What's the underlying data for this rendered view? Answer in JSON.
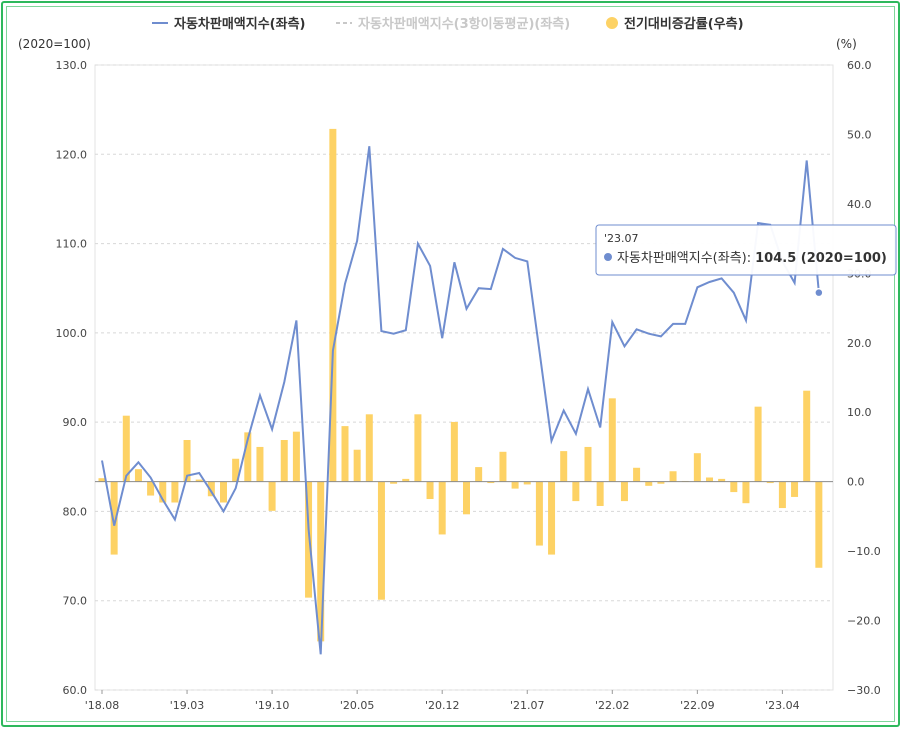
{
  "chart_data": {
    "type": "bar",
    "legend_position": "top",
    "grid": true,
    "left_axis": {
      "unit_label": "(2020=100)",
      "ylim": [
        60,
        130
      ],
      "ticks": [
        "130.0",
        "120.0",
        "110.0",
        "100.0",
        "90.0",
        "80.0",
        "70.0",
        "60.0"
      ]
    },
    "right_axis": {
      "unit_label": "(%)",
      "ylim": [
        -30,
        60
      ],
      "ticks": [
        "60.0",
        "50.0",
        "40.0",
        "30.0",
        "20.0",
        "10.0",
        "0.0",
        "−10.0",
        "−20.0",
        "−30.0"
      ]
    },
    "x_tick_labels": [
      "'18.08",
      "'19.03",
      "'19.10",
      "'20.05",
      "'20.12",
      "'21.07",
      "'22.02",
      "'22.09",
      "'23.04"
    ],
    "series": [
      {
        "name": "자동차판매액지수(좌측)",
        "kind": "line",
        "axis": "left",
        "color": "#6f8dcf",
        "values": [
          85.7,
          78.4,
          84.0,
          85.5,
          83.8,
          81.3,
          79.1,
          84.0,
          84.3,
          82.2,
          80.0,
          82.6,
          88.1,
          93.0,
          89.2,
          94.5,
          101.4,
          78.0,
          64.0,
          98.0,
          105.5,
          110.3,
          120.9,
          100.2,
          99.9,
          100.3,
          110.0,
          107.5,
          99.4,
          107.9,
          102.7,
          105.0,
          104.9,
          109.4,
          108.4,
          108.0,
          98.0,
          87.9,
          91.3,
          88.7,
          93.7,
          89.4,
          101.2,
          98.5,
          100.4,
          99.9,
          99.6,
          101.0,
          101.0,
          105.1,
          105.7,
          106.1,
          104.5,
          101.4,
          112.3,
          112.1,
          108.0,
          105.6,
          119.3,
          104.5
        ]
      },
      {
        "name": "자동차판매액지수(3항이동평균)(좌측)",
        "kind": "line-dashed",
        "axis": "left",
        "color": "#c8c8c8",
        "values": []
      },
      {
        "name": "전기대비증감률(우측)",
        "kind": "bar",
        "axis": "right",
        "color": "#fdd265",
        "values": [
          0.5,
          -10.5,
          9.5,
          1.8,
          -2.0,
          -3.0,
          -3.0,
          6.0,
          0.3,
          -2.1,
          -3.0,
          3.3,
          7.1,
          5.0,
          -4.2,
          6.0,
          7.2,
          -16.7,
          -23.0,
          50.8,
          8.0,
          4.6,
          9.7,
          -17.0,
          -0.3,
          0.4,
          9.7,
          -2.5,
          -7.6,
          8.6,
          -4.7,
          2.1,
          -0.2,
          4.3,
          -1.0,
          -0.4,
          -9.2,
          -10.5,
          4.4,
          -2.8,
          5.0,
          -3.5,
          12.0,
          -2.8,
          2.0,
          -0.6,
          -0.3,
          1.5,
          0.1,
          4.1,
          0.6,
          0.4,
          -1.5,
          -3.1,
          10.8,
          -0.2,
          -3.8,
          -2.2,
          13.1,
          -12.4
        ]
      }
    ],
    "tooltip": {
      "date": "'23.07",
      "series_label": "자동차판매액지수(좌측):",
      "value": "104.5 (2020=100)"
    }
  }
}
